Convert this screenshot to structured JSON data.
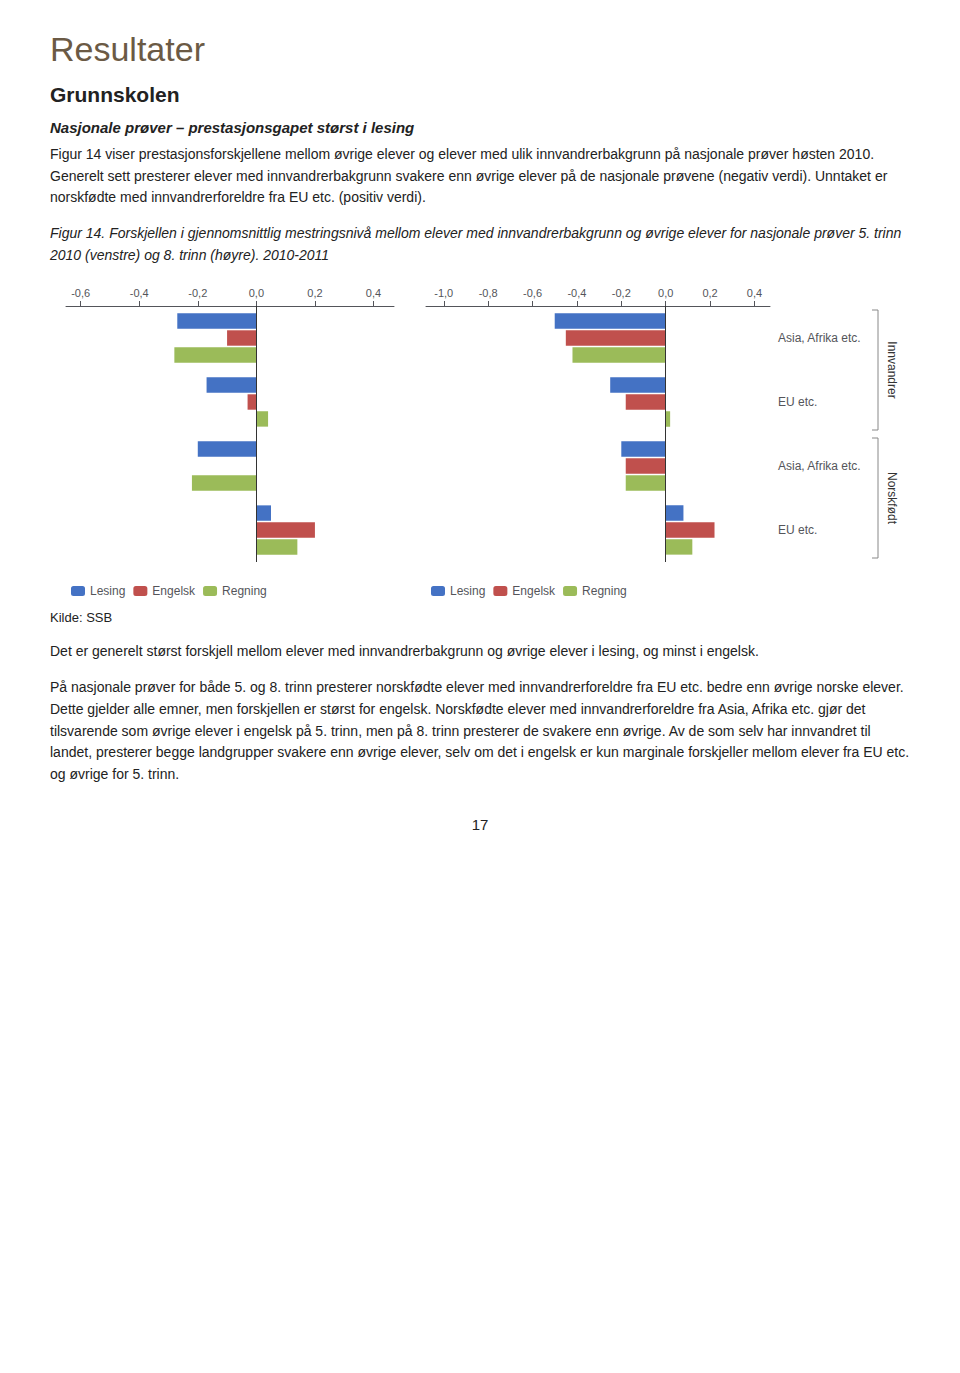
{
  "title": "Resultater",
  "subtitle": "Grunnskolen",
  "annotations": [
    "Nasjonale prøver – prestasjonsgapet størst i lesing",
    "Figur 14 viser prestasjonsforskjellene mellom øvrige elever og elever med ulik innvandrerbakgrunn på nasjonale prøver høsten 2010. Generelt sett presterer elever med innvandrerbakgrunn svakere enn øvrige elever på de nasjonale prøvene (negativ verdi). Unntaket er norskfødte med innvandrerforeldre fra EU etc. (positiv verdi).",
    "Figur 14. Forskjellen i gjennomsnittlig mestringsnivå mellom elever med innvandrerbakgrunn og øvrige elever for nasjonale prøver 5. trinn 2010 (venstre) og 8. trinn (høyre). 2010-2011",
    "Kilde: SSB",
    "Det er generelt størst forskjell mellom elever med innvandrerbakgrunn og øvrige elever i lesing, og minst i engelsk.",
    "På nasjonale prøver for både 5. og 8. trinn presterer norskfødte elever med innvandrerforeldre fra EU etc. bedre enn øvrige norske elever. Dette gjelder alle emner, men forskjellen er størst for engelsk. Norskfødte elever med innvandrerforeldre fra Asia, Afrika etc. gjør det tilsvarende som øvrige elever i engelsk på 5. trinn, men på 8. trinn presterer de svakere enn øvrige. Av de som selv har innvandret til landet, presterer begge landgrupper svakere enn øvrige elever, selv om det i engelsk er kun marginale forskjeller mellom elever fra EU etc. og øvrige for 5. trinn.",
    "17"
  ],
  "chart_data": [
    {
      "type": "bar",
      "orientation": "horizontal",
      "categories": [
        null,
        null,
        null,
        null
      ],
      "tick_labels": "x",
      "series": [
        {
          "name": "Lesing",
          "color": "#4472C4",
          "values": [
            -0.27,
            -0.17,
            -0.2,
            0.05
          ]
        },
        {
          "name": "Engelsk",
          "color": "#C0504D",
          "values": [
            -0.1,
            -0.03,
            0.0,
            0.2
          ]
        },
        {
          "name": "Regning",
          "color": "#9BBB59",
          "values": [
            -0.28,
            0.04,
            -0.22,
            0.14
          ]
        }
      ],
      "xlim": [
        -0.65,
        0.47
      ],
      "xticks": [
        {
          "value": -0.6,
          "label": "-0,6"
        },
        {
          "value": -0.4,
          "label": "-0,4"
        },
        {
          "value": -0.2,
          "label": "-0,2"
        },
        {
          "value": 0.0,
          "label": "0,0"
        },
        {
          "value": 0.2,
          "label": "0,2"
        },
        {
          "value": 0.4,
          "label": "0,4"
        }
      ],
      "grid": false,
      "legend": "lower left"
    },
    {
      "type": "bar",
      "orientation": "horizontal",
      "categories": [
        "Asia, Afrika etc.",
        "EU etc.",
        "Asia, Afrika etc.",
        "EU etc."
      ],
      "annotations": [
        "Innvandrer",
        "Norskfødt"
      ],
      "series": [
        {
          "name": "Lesing",
          "color": "#4472C4",
          "values": [
            -0.5,
            -0.25,
            -0.2,
            0.08
          ]
        },
        {
          "name": "Engelsk",
          "color": "#C0504D",
          "values": [
            -0.45,
            -0.18,
            -0.18,
            0.22
          ]
        },
        {
          "name": "Regning",
          "color": "#9BBB59",
          "values": [
            -0.42,
            0.02,
            -0.18,
            0.12
          ]
        }
      ],
      "xlim": [
        -1.08,
        0.47
      ],
      "xticks": [
        {
          "value": -1.0,
          "label": "-1,0"
        },
        {
          "value": -0.8,
          "label": "-0,8"
        },
        {
          "value": -0.6,
          "label": "-0,6"
        },
        {
          "value": -0.4,
          "label": "-0,4"
        },
        {
          "value": -0.2,
          "label": "-0,2"
        },
        {
          "value": 0.0,
          "label": "0,0"
        },
        {
          "value": 0.2,
          "label": "0,2"
        },
        {
          "value": 0.4,
          "label": "0,4"
        }
      ],
      "grid": false,
      "legend": "lower left"
    }
  ]
}
